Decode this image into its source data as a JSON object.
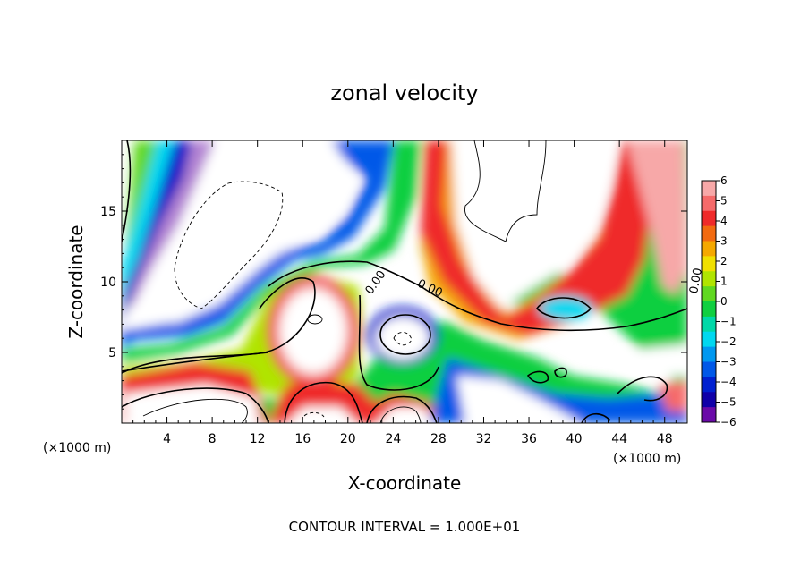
{
  "chart_data": {
    "type": "heatmap",
    "title": "zonal velocity",
    "xlabel": "X-coordinate",
    "ylabel": "Z-coordinate",
    "x_unit_label": "(×1000 m)",
    "x_unit_label_right": "(×1000 m)",
    "xlim": [
      0,
      50
    ],
    "ylim": [
      0,
      20
    ],
    "x_ticks": [
      "4",
      "8",
      "12",
      "16",
      "20",
      "24",
      "28",
      "32",
      "36",
      "40",
      "44",
      "48"
    ],
    "x_tick_values": [
      4,
      8,
      12,
      16,
      20,
      24,
      28,
      32,
      36,
      40,
      44,
      48
    ],
    "y_ticks": [
      "5",
      "10",
      "15"
    ],
    "y_tick_values": [
      5,
      10,
      15
    ],
    "colorbar": {
      "labels": [
        "6",
        "5",
        "4",
        "3",
        "2",
        "1",
        "0",
        "−1",
        "−2",
        "−3",
        "−4",
        "−5",
        "−6"
      ],
      "values": [
        6,
        5,
        4,
        3,
        2,
        1,
        0,
        -1,
        -2,
        -3,
        -4,
        -5,
        -6
      ],
      "colors": [
        "#f7a8a8",
        "#f56a6a",
        "#ef2a2a",
        "#f26a10",
        "#f5a800",
        "#f0e000",
        "#b0e400",
        "#60d820",
        "#10cf40",
        "#00d8a8",
        "#00d8f0",
        "#0098f0",
        "#0058e8",
        "#0020d0",
        "#1000a8",
        "#6a0aa8"
      ]
    },
    "contour_labels": [
      "0.00",
      "0.00",
      "0.00"
    ],
    "footnote": "CONTOUR INTERVAL = 1.000E+01"
  }
}
